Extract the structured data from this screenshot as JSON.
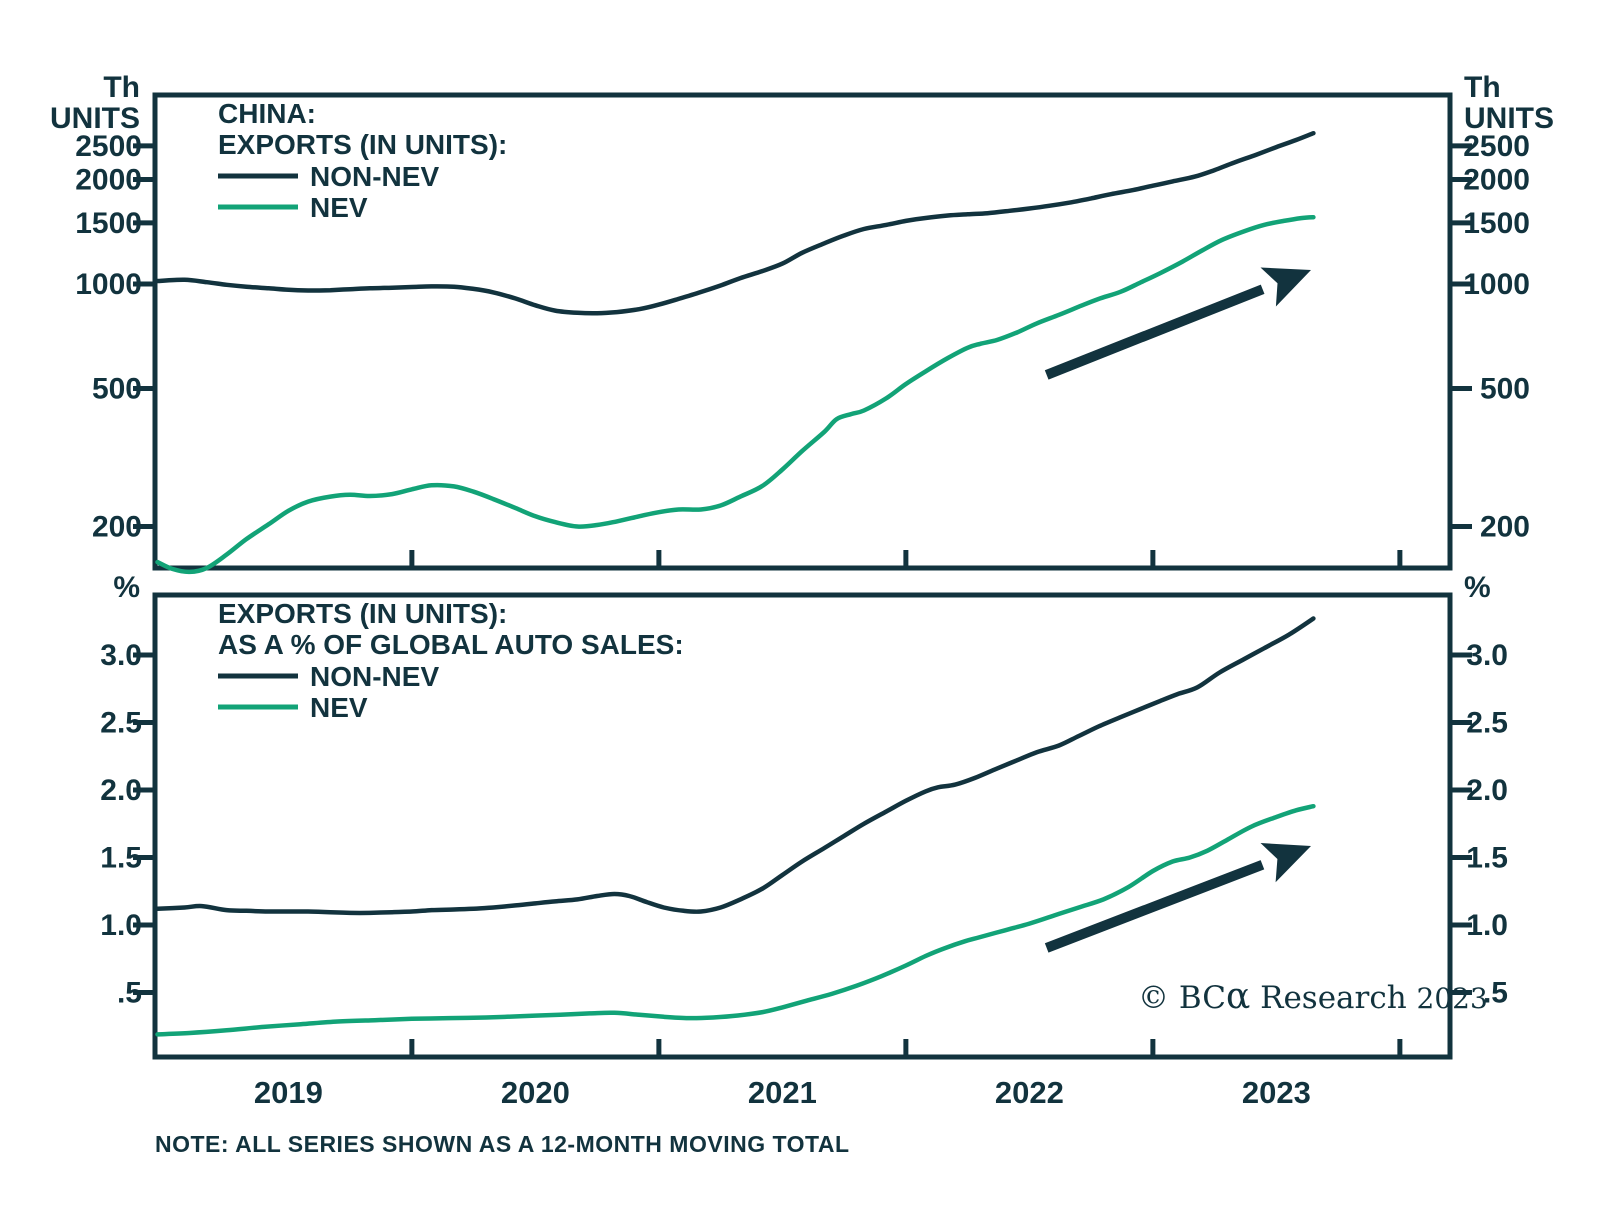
{
  "colors": {
    "dark": "#12333e",
    "green": "#12a377",
    "background": "#ffffff"
  },
  "note": "NOTE: ALL SERIES SHOWN AS A 12-MONTH MOVING TOTAL",
  "copyright": {
    "symbol": "©",
    "brand_prefix": "BC",
    "brand_alpha": "α",
    "brand_suffix": "Research",
    "year": "2023"
  },
  "x_axis": {
    "year_labels": [
      "2019",
      "2020",
      "2021",
      "2022",
      "2023"
    ],
    "year_label_positions": [
      2019.5,
      2020.5,
      2021.5,
      2022.5,
      2023.5
    ],
    "tick_years": [
      2020,
      2021,
      2022,
      2023,
      2024
    ],
    "range": [
      2018.96,
      2024.2
    ]
  },
  "chart_data": [
    {
      "type": "line",
      "panel": "units",
      "title_lines": [
        "CHINA:",
        "EXPORTS (IN UNITS):"
      ],
      "ylabel_left": [
        "Th",
        "UNITS"
      ],
      "ylabel_right": [
        "Th",
        "UNITS"
      ],
      "yscale": "log",
      "yticks": [
        {
          "label": "2500",
          "value": 2500
        },
        {
          "label": "2000",
          "value": 2000
        },
        {
          "label": "1500",
          "value": 1500
        },
        {
          "label": "1000",
          "value": 1000
        },
        {
          "label": "500",
          "value": 500
        },
        {
          "label": "200",
          "value": 200
        }
      ],
      "legend": [
        {
          "label": "NON-NEV",
          "color": "dark"
        },
        {
          "label": "NEV",
          "color": "green"
        }
      ],
      "series": [
        {
          "name": "NON-NEV",
          "color": "dark",
          "points": [
            [
              2018.97,
              1020
            ],
            [
              2019.08,
              1028
            ],
            [
              2019.17,
              1012
            ],
            [
              2019.25,
              995
            ],
            [
              2019.33,
              982
            ],
            [
              2019.42,
              972
            ],
            [
              2019.5,
              962
            ],
            [
              2019.58,
              958
            ],
            [
              2019.67,
              960
            ],
            [
              2019.75,
              966
            ],
            [
              2019.83,
              972
            ],
            [
              2019.92,
              976
            ],
            [
              2020.0,
              980
            ],
            [
              2020.08,
              984
            ],
            [
              2020.17,
              982
            ],
            [
              2020.25,
              968
            ],
            [
              2020.33,
              946
            ],
            [
              2020.42,
              908
            ],
            [
              2020.5,
              868
            ],
            [
              2020.58,
              838
            ],
            [
              2020.67,
              826
            ],
            [
              2020.75,
              824
            ],
            [
              2020.83,
              830
            ],
            [
              2020.92,
              846
            ],
            [
              2021.0,
              872
            ],
            [
              2021.08,
              906
            ],
            [
              2021.17,
              948
            ],
            [
              2021.25,
              990
            ],
            [
              2021.33,
              1040
            ],
            [
              2021.42,
              1090
            ],
            [
              2021.5,
              1145
            ],
            [
              2021.58,
              1230
            ],
            [
              2021.67,
              1310
            ],
            [
              2021.75,
              1380
            ],
            [
              2021.83,
              1440
            ],
            [
              2021.92,
              1480
            ],
            [
              2022.0,
              1520
            ],
            [
              2022.08,
              1550
            ],
            [
              2022.17,
              1575
            ],
            [
              2022.25,
              1588
            ],
            [
              2022.33,
              1600
            ],
            [
              2022.42,
              1625
            ],
            [
              2022.5,
              1650
            ],
            [
              2022.58,
              1680
            ],
            [
              2022.67,
              1720
            ],
            [
              2022.75,
              1765
            ],
            [
              2022.83,
              1815
            ],
            [
              2022.92,
              1865
            ],
            [
              2023.0,
              1920
            ],
            [
              2023.08,
              1975
            ],
            [
              2023.17,
              2040
            ],
            [
              2023.25,
              2130
            ],
            [
              2023.33,
              2240
            ],
            [
              2023.42,
              2360
            ],
            [
              2023.5,
              2480
            ],
            [
              2023.58,
              2600
            ],
            [
              2023.65,
              2720
            ]
          ]
        },
        {
          "name": "NEV",
          "color": "green",
          "points": [
            [
              2018.97,
              158
            ],
            [
              2019.03,
              151
            ],
            [
              2019.1,
              148
            ],
            [
              2019.17,
              152
            ],
            [
              2019.25,
              166
            ],
            [
              2019.33,
              184
            ],
            [
              2019.42,
              203
            ],
            [
              2019.5,
              222
            ],
            [
              2019.58,
              236
            ],
            [
              2019.67,
              244
            ],
            [
              2019.75,
              247
            ],
            [
              2019.83,
              245
            ],
            [
              2019.92,
              248
            ],
            [
              2020.0,
              256
            ],
            [
              2020.08,
              263
            ],
            [
              2020.17,
              261
            ],
            [
              2020.25,
              252
            ],
            [
              2020.33,
              240
            ],
            [
              2020.42,
              226
            ],
            [
              2020.5,
              214
            ],
            [
              2020.58,
              206
            ],
            [
              2020.67,
              200
            ],
            [
              2020.75,
              202
            ],
            [
              2020.83,
              207
            ],
            [
              2020.92,
              214
            ],
            [
              2021.0,
              220
            ],
            [
              2021.08,
              224
            ],
            [
              2021.17,
              224
            ],
            [
              2021.25,
              230
            ],
            [
              2021.33,
              244
            ],
            [
              2021.42,
              262
            ],
            [
              2021.5,
              292
            ],
            [
              2021.58,
              330
            ],
            [
              2021.67,
              375
            ],
            [
              2021.72,
              408
            ],
            [
              2021.78,
              422
            ],
            [
              2021.83,
              432
            ],
            [
              2021.92,
              468
            ],
            [
              2022.0,
              515
            ],
            [
              2022.08,
              560
            ],
            [
              2022.17,
              612
            ],
            [
              2022.25,
              655
            ],
            [
              2022.3,
              672
            ],
            [
              2022.37,
              690
            ],
            [
              2022.45,
              725
            ],
            [
              2022.53,
              770
            ],
            [
              2022.62,
              815
            ],
            [
              2022.7,
              860
            ],
            [
              2022.78,
              905
            ],
            [
              2022.87,
              950
            ],
            [
              2022.95,
              1010
            ],
            [
              2023.03,
              1075
            ],
            [
              2023.12,
              1160
            ],
            [
              2023.2,
              1250
            ],
            [
              2023.28,
              1340
            ],
            [
              2023.37,
              1420
            ],
            [
              2023.45,
              1480
            ],
            [
              2023.53,
              1520
            ],
            [
              2023.6,
              1548
            ],
            [
              2023.65,
              1558
            ]
          ]
        }
      ],
      "arrow": {
        "from": [
          2022.57,
          547
        ],
        "to": [
          2023.64,
          1097
        ]
      }
    },
    {
      "type": "line",
      "panel": "percent",
      "title_lines": [
        "EXPORTS (IN UNITS):",
        "AS A % OF GLOBAL AUTO SALES:"
      ],
      "ylabel_left": [
        "%"
      ],
      "ylabel_right": [
        "%"
      ],
      "yscale": "linear",
      "yticks": [
        {
          "label": "3.0",
          "value": 3.0
        },
        {
          "label": "2.5",
          "value": 2.5
        },
        {
          "label": "2.0",
          "value": 2.0
        },
        {
          "label": "1.5",
          "value": 1.5
        },
        {
          "label": "1.0",
          "value": 1.0
        },
        {
          "label": ".5",
          "value": 0.5
        }
      ],
      "legend": [
        {
          "label": "NON-NEV",
          "color": "dark"
        },
        {
          "label": "NEV",
          "color": "green"
        }
      ],
      "series": [
        {
          "name": "NON-NEV",
          "color": "dark",
          "points": [
            [
              2018.97,
              1.12
            ],
            [
              2019.08,
              1.13
            ],
            [
              2019.15,
              1.14
            ],
            [
              2019.25,
              1.11
            ],
            [
              2019.33,
              1.105
            ],
            [
              2019.42,
              1.1
            ],
            [
              2019.5,
              1.1
            ],
            [
              2019.58,
              1.1
            ],
            [
              2019.67,
              1.095
            ],
            [
              2019.75,
              1.09
            ],
            [
              2019.83,
              1.09
            ],
            [
              2019.92,
              1.095
            ],
            [
              2020.0,
              1.1
            ],
            [
              2020.08,
              1.11
            ],
            [
              2020.17,
              1.115
            ],
            [
              2020.25,
              1.12
            ],
            [
              2020.33,
              1.13
            ],
            [
              2020.42,
              1.145
            ],
            [
              2020.5,
              1.16
            ],
            [
              2020.58,
              1.175
            ],
            [
              2020.67,
              1.19
            ],
            [
              2020.75,
              1.215
            ],
            [
              2020.82,
              1.23
            ],
            [
              2020.88,
              1.215
            ],
            [
              2020.95,
              1.17
            ],
            [
              2021.02,
              1.13
            ],
            [
              2021.1,
              1.105
            ],
            [
              2021.17,
              1.1
            ],
            [
              2021.25,
              1.13
            ],
            [
              2021.33,
              1.19
            ],
            [
              2021.42,
              1.27
            ],
            [
              2021.5,
              1.37
            ],
            [
              2021.58,
              1.47
            ],
            [
              2021.67,
              1.57
            ],
            [
              2021.75,
              1.66
            ],
            [
              2021.83,
              1.75
            ],
            [
              2021.92,
              1.84
            ],
            [
              2022.0,
              1.92
            ],
            [
              2022.08,
              1.99
            ],
            [
              2022.13,
              2.02
            ],
            [
              2022.2,
              2.04
            ],
            [
              2022.28,
              2.09
            ],
            [
              2022.37,
              2.16
            ],
            [
              2022.45,
              2.22
            ],
            [
              2022.53,
              2.28
            ],
            [
              2022.62,
              2.33
            ],
            [
              2022.7,
              2.4
            ],
            [
              2022.78,
              2.47
            ],
            [
              2022.87,
              2.54
            ],
            [
              2022.95,
              2.6
            ],
            [
              2023.03,
              2.66
            ],
            [
              2023.1,
              2.71
            ],
            [
              2023.18,
              2.76
            ],
            [
              2023.27,
              2.87
            ],
            [
              2023.37,
              2.97
            ],
            [
              2023.45,
              3.05
            ],
            [
              2023.55,
              3.15
            ],
            [
              2023.65,
              3.27
            ]
          ]
        },
        {
          "name": "NEV",
          "color": "green",
          "points": [
            [
              2018.97,
              0.19
            ],
            [
              2019.1,
              0.2
            ],
            [
              2019.25,
              0.22
            ],
            [
              2019.4,
              0.245
            ],
            [
              2019.55,
              0.265
            ],
            [
              2019.7,
              0.285
            ],
            [
              2019.85,
              0.295
            ],
            [
              2020.0,
              0.305
            ],
            [
              2020.15,
              0.31
            ],
            [
              2020.3,
              0.315
            ],
            [
              2020.45,
              0.325
            ],
            [
              2020.6,
              0.335
            ],
            [
              2020.72,
              0.345
            ],
            [
              2020.82,
              0.35
            ],
            [
              2020.92,
              0.335
            ],
            [
              2021.02,
              0.32
            ],
            [
              2021.12,
              0.31
            ],
            [
              2021.22,
              0.315
            ],
            [
              2021.32,
              0.33
            ],
            [
              2021.42,
              0.355
            ],
            [
              2021.5,
              0.39
            ],
            [
              2021.6,
              0.44
            ],
            [
              2021.7,
              0.49
            ],
            [
              2021.8,
              0.55
            ],
            [
              2021.9,
              0.62
            ],
            [
              2022.0,
              0.7
            ],
            [
              2022.08,
              0.77
            ],
            [
              2022.16,
              0.83
            ],
            [
              2022.24,
              0.88
            ],
            [
              2022.3,
              0.91
            ],
            [
              2022.4,
              0.96
            ],
            [
              2022.5,
              1.01
            ],
            [
              2022.6,
              1.07
            ],
            [
              2022.7,
              1.13
            ],
            [
              2022.8,
              1.19
            ],
            [
              2022.9,
              1.28
            ],
            [
              2023.0,
              1.4
            ],
            [
              2023.08,
              1.47
            ],
            [
              2023.15,
              1.5
            ],
            [
              2023.22,
              1.55
            ],
            [
              2023.3,
              1.63
            ],
            [
              2023.4,
              1.73
            ],
            [
              2023.5,
              1.8
            ],
            [
              2023.58,
              1.85
            ],
            [
              2023.65,
              1.88
            ]
          ]
        }
      ],
      "arrow": {
        "from": [
          2022.57,
          0.83
        ],
        "to": [
          2023.64,
          1.585
        ]
      }
    }
  ]
}
